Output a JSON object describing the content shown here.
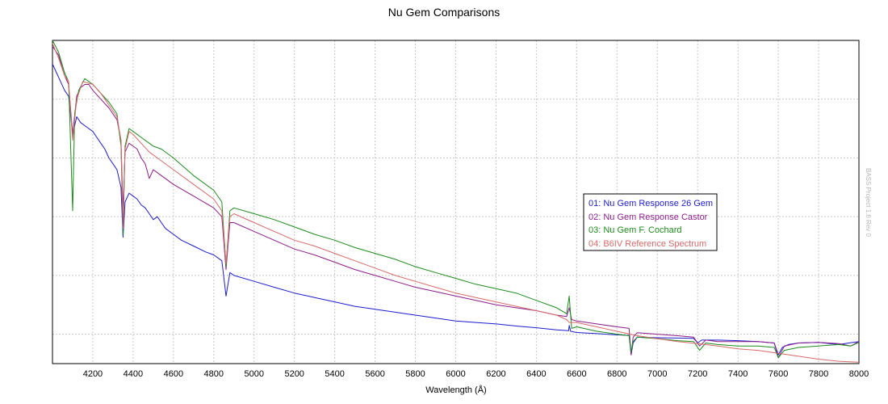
{
  "chart_data": {
    "type": "line",
    "title": "Nu Gem Comparisons",
    "xlabel": "Wavelength (Å)",
    "ylabel": "",
    "xlim": [
      4000,
      8000
    ],
    "ylim": [
      0,
      1.1
    ],
    "x_ticks": [
      4200,
      4400,
      4600,
      4800,
      5000,
      5200,
      5400,
      5600,
      5800,
      6000,
      6200,
      6400,
      6600,
      6800,
      7000,
      7200,
      7400,
      7600,
      7800,
      8000
    ],
    "y_ticks_shown": false,
    "grid": true,
    "legend_position": "center-right",
    "watermark": "BASS Project 1.6 Rev 0",
    "series": [
      {
        "name": "01: Nu Gem Response 26 Gem",
        "color": "#1c1ccc",
        "points": [
          [
            4000,
            1.02
          ],
          [
            4020,
            0.99
          ],
          [
            4040,
            0.96
          ],
          [
            4060,
            0.93
          ],
          [
            4080,
            0.91
          ],
          [
            4100,
            0.78
          ],
          [
            4120,
            0.84
          ],
          [
            4140,
            0.82
          ],
          [
            4160,
            0.81
          ],
          [
            4180,
            0.8
          ],
          [
            4200,
            0.79
          ],
          [
            4220,
            0.77
          ],
          [
            4240,
            0.75
          ],
          [
            4260,
            0.73
          ],
          [
            4280,
            0.7
          ],
          [
            4300,
            0.68
          ],
          [
            4320,
            0.66
          ],
          [
            4340,
            0.6
          ],
          [
            4350,
            0.43
          ],
          [
            4360,
            0.55
          ],
          [
            4380,
            0.58
          ],
          [
            4400,
            0.57
          ],
          [
            4420,
            0.56
          ],
          [
            4440,
            0.54
          ],
          [
            4460,
            0.53
          ],
          [
            4480,
            0.51
          ],
          [
            4500,
            0.49
          ],
          [
            4520,
            0.5
          ],
          [
            4540,
            0.48
          ],
          [
            4560,
            0.46
          ],
          [
            4600,
            0.44
          ],
          [
            4640,
            0.42
          ],
          [
            4700,
            0.4
          ],
          [
            4760,
            0.38
          ],
          [
            4800,
            0.37
          ],
          [
            4840,
            0.35
          ],
          [
            4861,
            0.23
          ],
          [
            4880,
            0.31
          ],
          [
            4900,
            0.3
          ],
          [
            5000,
            0.28
          ],
          [
            5100,
            0.26
          ],
          [
            5200,
            0.24
          ],
          [
            5300,
            0.225
          ],
          [
            5400,
            0.21
          ],
          [
            5500,
            0.195
          ],
          [
            5600,
            0.185
          ],
          [
            5700,
            0.175
          ],
          [
            5800,
            0.165
          ],
          [
            5900,
            0.155
          ],
          [
            6000,
            0.145
          ],
          [
            6100,
            0.14
          ],
          [
            6200,
            0.135
          ],
          [
            6300,
            0.128
          ],
          [
            6400,
            0.122
          ],
          [
            6500,
            0.115
          ],
          [
            6560,
            0.112
          ],
          [
            6563,
            0.13
          ],
          [
            6570,
            0.11
          ],
          [
            6600,
            0.106
          ],
          [
            6700,
            0.102
          ],
          [
            6800,
            0.098
          ],
          [
            6860,
            0.096
          ],
          [
            6870,
            0.03
          ],
          [
            6880,
            0.07
          ],
          [
            6900,
            0.09
          ],
          [
            7000,
            0.088
          ],
          [
            7100,
            0.087
          ],
          [
            7180,
            0.086
          ],
          [
            7200,
            0.07
          ],
          [
            7220,
            0.08
          ],
          [
            7300,
            0.08
          ],
          [
            7400,
            0.078
          ],
          [
            7500,
            0.075
          ],
          [
            7580,
            0.07
          ],
          [
            7600,
            0.03
          ],
          [
            7620,
            0.055
          ],
          [
            7650,
            0.065
          ],
          [
            7700,
            0.07
          ],
          [
            7800,
            0.072
          ],
          [
            7900,
            0.065
          ],
          [
            7950,
            0.07
          ],
          [
            8000,
            0.075
          ]
        ]
      },
      {
        "name": "02: Nu Gem Response Castor",
        "color": "#8a1c8a",
        "points": [
          [
            4000,
            1.08
          ],
          [
            4030,
            1.05
          ],
          [
            4060,
            0.98
          ],
          [
            4080,
            0.95
          ],
          [
            4100,
            0.78
          ],
          [
            4120,
            0.91
          ],
          [
            4140,
            0.94
          ],
          [
            4160,
            0.95
          ],
          [
            4180,
            0.95
          ],
          [
            4200,
            0.93
          ],
          [
            4240,
            0.9
          ],
          [
            4280,
            0.87
          ],
          [
            4320,
            0.83
          ],
          [
            4340,
            0.76
          ],
          [
            4350,
            0.52
          ],
          [
            4360,
            0.72
          ],
          [
            4380,
            0.75
          ],
          [
            4400,
            0.74
          ],
          [
            4420,
            0.73
          ],
          [
            4440,
            0.7
          ],
          [
            4460,
            0.68
          ],
          [
            4480,
            0.63
          ],
          [
            4500,
            0.66
          ],
          [
            4540,
            0.64
          ],
          [
            4600,
            0.61
          ],
          [
            4700,
            0.57
          ],
          [
            4800,
            0.53
          ],
          [
            4840,
            0.5
          ],
          [
            4861,
            0.32
          ],
          [
            4880,
            0.48
          ],
          [
            4900,
            0.48
          ],
          [
            5000,
            0.45
          ],
          [
            5100,
            0.42
          ],
          [
            5200,
            0.39
          ],
          [
            5300,
            0.37
          ],
          [
            5400,
            0.345
          ],
          [
            5500,
            0.32
          ],
          [
            5600,
            0.3
          ],
          [
            5700,
            0.28
          ],
          [
            5800,
            0.26
          ],
          [
            5900,
            0.245
          ],
          [
            6000,
            0.23
          ],
          [
            6100,
            0.215
          ],
          [
            6200,
            0.2
          ],
          [
            6300,
            0.19
          ],
          [
            6400,
            0.18
          ],
          [
            6500,
            0.165
          ],
          [
            6550,
            0.16
          ],
          [
            6563,
            0.19
          ],
          [
            6575,
            0.15
          ],
          [
            6600,
            0.145
          ],
          [
            6700,
            0.135
          ],
          [
            6800,
            0.125
          ],
          [
            6860,
            0.12
          ],
          [
            6870,
            0.03
          ],
          [
            6880,
            0.09
          ],
          [
            6900,
            0.105
          ],
          [
            7000,
            0.1
          ],
          [
            7100,
            0.095
          ],
          [
            7180,
            0.09
          ],
          [
            7210,
            0.06
          ],
          [
            7240,
            0.08
          ],
          [
            7300,
            0.075
          ],
          [
            7400,
            0.075
          ],
          [
            7500,
            0.075
          ],
          [
            7580,
            0.07
          ],
          [
            7600,
            0.02
          ],
          [
            7630,
            0.06
          ],
          [
            7700,
            0.07
          ],
          [
            7800,
            0.072
          ],
          [
            7900,
            0.068
          ],
          [
            7960,
            0.06
          ],
          [
            8000,
            0.075
          ]
        ]
      },
      {
        "name": "03: Nu Gem F. Cochard",
        "color": "#1c8a1c",
        "points": [
          [
            4000,
            1.1
          ],
          [
            4030,
            1.06
          ],
          [
            4060,
            0.99
          ],
          [
            4080,
            0.96
          ],
          [
            4100,
            0.52
          ],
          [
            4110,
            0.85
          ],
          [
            4130,
            0.93
          ],
          [
            4160,
            0.97
          ],
          [
            4200,
            0.95
          ],
          [
            4240,
            0.92
          ],
          [
            4280,
            0.89
          ],
          [
            4320,
            0.85
          ],
          [
            4340,
            0.74
          ],
          [
            4350,
            0.44
          ],
          [
            4360,
            0.74
          ],
          [
            4380,
            0.8
          ],
          [
            4400,
            0.79
          ],
          [
            4440,
            0.77
          ],
          [
            4480,
            0.75
          ],
          [
            4500,
            0.74
          ],
          [
            4540,
            0.73
          ],
          [
            4600,
            0.7
          ],
          [
            4700,
            0.64
          ],
          [
            4800,
            0.59
          ],
          [
            4840,
            0.55
          ],
          [
            4861,
            0.33
          ],
          [
            4880,
            0.52
          ],
          [
            4900,
            0.53
          ],
          [
            5000,
            0.51
          ],
          [
            5100,
            0.49
          ],
          [
            5200,
            0.465
          ],
          [
            5300,
            0.44
          ],
          [
            5400,
            0.42
          ],
          [
            5500,
            0.395
          ],
          [
            5600,
            0.375
          ],
          [
            5700,
            0.355
          ],
          [
            5800,
            0.33
          ],
          [
            5900,
            0.31
          ],
          [
            6000,
            0.29
          ],
          [
            6100,
            0.27
          ],
          [
            6200,
            0.255
          ],
          [
            6300,
            0.24
          ],
          [
            6400,
            0.215
          ],
          [
            6500,
            0.19
          ],
          [
            6550,
            0.17
          ],
          [
            6563,
            0.23
          ],
          [
            6575,
            0.12
          ],
          [
            6600,
            0.125
          ],
          [
            6700,
            0.11
          ],
          [
            6800,
            0.1
          ],
          [
            6860,
            0.095
          ],
          [
            6870,
            0.04
          ],
          [
            6880,
            0.075
          ],
          [
            6900,
            0.09
          ],
          [
            7000,
            0.085
          ],
          [
            7100,
            0.078
          ],
          [
            7180,
            0.075
          ],
          [
            7210,
            0.045
          ],
          [
            7240,
            0.07
          ],
          [
            7300,
            0.065
          ],
          [
            7400,
            0.06
          ],
          [
            7500,
            0.06
          ],
          [
            7580,
            0.055
          ],
          [
            7600,
            0.02
          ],
          [
            7630,
            0.045
          ],
          [
            7700,
            0.055
          ],
          [
            7800,
            0.06
          ],
          [
            7900,
            0.065
          ],
          [
            7960,
            0.06
          ],
          [
            8000,
            0.072
          ]
        ]
      },
      {
        "name": "04: B6IV Reference Spectrum",
        "color": "#d46a6a",
        "points": [
          [
            4000,
            1.09
          ],
          [
            4030,
            1.04
          ],
          [
            4060,
            0.98
          ],
          [
            4080,
            0.96
          ],
          [
            4100,
            0.76
          ],
          [
            4120,
            0.9
          ],
          [
            4150,
            0.96
          ],
          [
            4200,
            0.95
          ],
          [
            4240,
            0.92
          ],
          [
            4280,
            0.88
          ],
          [
            4320,
            0.84
          ],
          [
            4340,
            0.76
          ],
          [
            4350,
            0.46
          ],
          [
            4360,
            0.73
          ],
          [
            4380,
            0.79
          ],
          [
            4400,
            0.78
          ],
          [
            4440,
            0.75
          ],
          [
            4480,
            0.72
          ],
          [
            4500,
            0.71
          ],
          [
            4540,
            0.69
          ],
          [
            4600,
            0.66
          ],
          [
            4700,
            0.61
          ],
          [
            4800,
            0.56
          ],
          [
            4840,
            0.52
          ],
          [
            4861,
            0.34
          ],
          [
            4880,
            0.5
          ],
          [
            4900,
            0.51
          ],
          [
            5000,
            0.48
          ],
          [
            5100,
            0.45
          ],
          [
            5200,
            0.42
          ],
          [
            5300,
            0.4
          ],
          [
            5400,
            0.375
          ],
          [
            5500,
            0.35
          ],
          [
            5600,
            0.325
          ],
          [
            5700,
            0.3
          ],
          [
            5800,
            0.28
          ],
          [
            5900,
            0.26
          ],
          [
            6000,
            0.24
          ],
          [
            6100,
            0.225
          ],
          [
            6200,
            0.21
          ],
          [
            6300,
            0.195
          ],
          [
            6400,
            0.18
          ],
          [
            6500,
            0.165
          ],
          [
            6550,
            0.15
          ],
          [
            6563,
            0.14
          ],
          [
            6600,
            0.14
          ],
          [
            6700,
            0.125
          ],
          [
            6800,
            0.11
          ],
          [
            6900,
            0.095
          ],
          [
            7000,
            0.085
          ],
          [
            7100,
            0.075
          ],
          [
            7200,
            0.068
          ],
          [
            7300,
            0.06
          ],
          [
            7400,
            0.05
          ],
          [
            7500,
            0.045
          ],
          [
            7600,
            0.035
          ],
          [
            7700,
            0.025
          ],
          [
            7800,
            0.015
          ],
          [
            7900,
            0.008
          ],
          [
            8000,
            0.005
          ]
        ]
      }
    ]
  }
}
